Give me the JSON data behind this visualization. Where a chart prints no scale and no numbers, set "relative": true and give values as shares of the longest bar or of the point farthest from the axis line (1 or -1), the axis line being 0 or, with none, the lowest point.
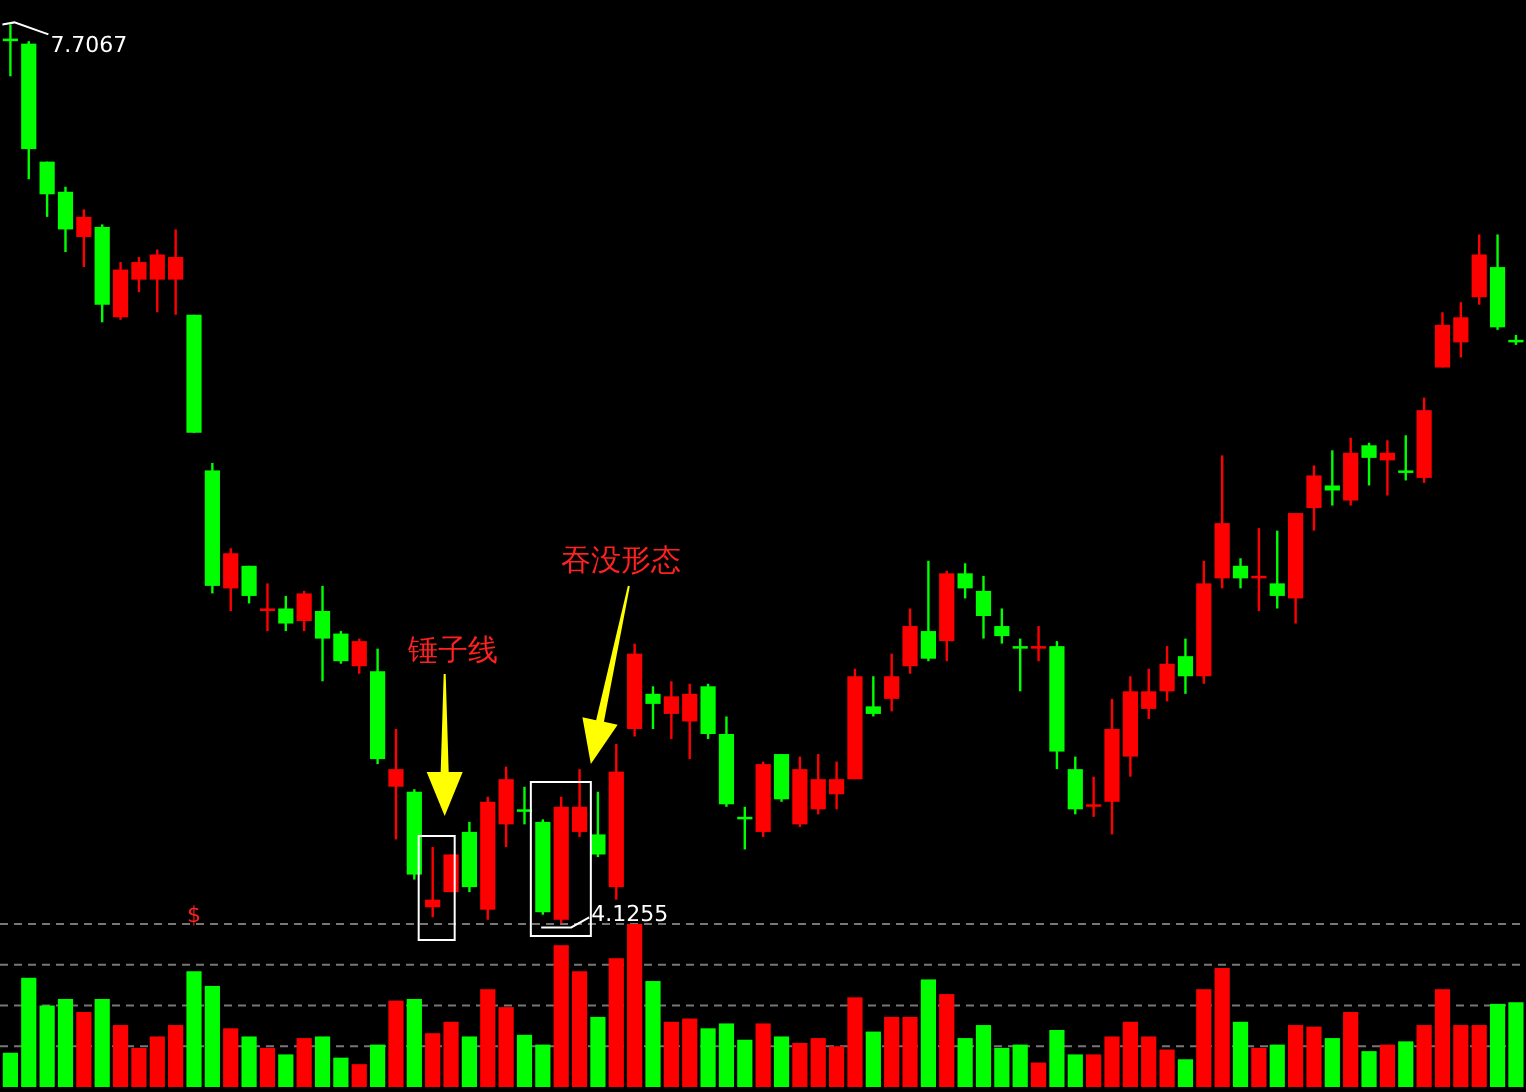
{
  "chart_data": [
    {
      "type": "candlestick",
      "categories": [
        null,
        null,
        null,
        null,
        null,
        null,
        null,
        null,
        null,
        null,
        null,
        null,
        null,
        null,
        null,
        null,
        null,
        null,
        null,
        null,
        null,
        null,
        null,
        null,
        null,
        null,
        null,
        null,
        null,
        null,
        null,
        null,
        null,
        null,
        null,
        null,
        null,
        null,
        null,
        null,
        null,
        null,
        null,
        null,
        null,
        null,
        null,
        null,
        null,
        null,
        null,
        null,
        null,
        null,
        null,
        null,
        null,
        null,
        null,
        null,
        null,
        null,
        null,
        null,
        null,
        null,
        null,
        null,
        null,
        null,
        null,
        null,
        null,
        null,
        null,
        null,
        null,
        null,
        null,
        null,
        null,
        null,
        null
      ],
      "ohlc": [
        [
          7.65,
          7.7067,
          7.5,
          7.64
        ],
        [
          7.63,
          7.64,
          7.09,
          7.21
        ],
        [
          7.16,
          7.16,
          6.94,
          7.03
        ],
        [
          7.04,
          7.06,
          6.8,
          6.89
        ],
        [
          6.86,
          6.97,
          6.74,
          6.94
        ],
        [
          6.9,
          6.91,
          6.52,
          6.59
        ],
        [
          6.54,
          6.76,
          6.53,
          6.73
        ],
        [
          6.69,
          6.78,
          6.64,
          6.76
        ],
        [
          6.69,
          6.81,
          6.56,
          6.79
        ],
        [
          6.69,
          6.89,
          6.55,
          6.78
        ],
        [
          6.55,
          6.55,
          6.08,
          6.08
        ],
        [
          5.93,
          5.96,
          5.44,
          5.47
        ],
        [
          5.46,
          5.62,
          5.37,
          5.6
        ],
        [
          5.55,
          5.55,
          5.4,
          5.43
        ],
        [
          5.37,
          5.48,
          5.29,
          5.38
        ],
        [
          5.38,
          5.43,
          5.29,
          5.32
        ],
        [
          5.33,
          5.45,
          5.29,
          5.44
        ],
        [
          5.37,
          5.47,
          5.09,
          5.26
        ],
        [
          5.28,
          5.29,
          5.16,
          5.17
        ],
        [
          5.15,
          5.26,
          5.12,
          5.25
        ],
        [
          5.13,
          5.22,
          4.76,
          4.78
        ],
        [
          4.67,
          4.9,
          4.46,
          4.74
        ],
        [
          4.65,
          4.66,
          4.3,
          4.32
        ],
        [
          4.19,
          4.43,
          4.15,
          4.22
        ],
        [
          4.25,
          4.4,
          4.25,
          4.4
        ],
        [
          4.49,
          4.53,
          4.25,
          4.27
        ],
        [
          4.18,
          4.63,
          4.14,
          4.61
        ],
        [
          4.52,
          4.75,
          4.43,
          4.7
        ],
        [
          4.58,
          4.67,
          4.52,
          4.57
        ],
        [
          4.53,
          4.54,
          4.16,
          4.17
        ],
        [
          4.14,
          4.63,
          4.1255,
          4.59
        ],
        [
          4.49,
          4.74,
          4.47,
          4.59
        ],
        [
          4.48,
          4.65,
          4.39,
          4.4
        ],
        [
          4.27,
          4.84,
          4.22,
          4.73
        ],
        [
          4.9,
          5.24,
          4.87,
          5.2
        ],
        [
          5.04,
          5.07,
          4.9,
          5.0
        ],
        [
          4.96,
          5.09,
          4.86,
          5.03
        ],
        [
          4.93,
          5.08,
          4.78,
          5.04
        ],
        [
          5.07,
          5.08,
          4.86,
          4.88
        ],
        [
          4.88,
          4.95,
          4.59,
          4.6
        ],
        [
          4.55,
          4.59,
          4.42,
          4.54
        ],
        [
          4.49,
          4.77,
          4.47,
          4.76
        ],
        [
          4.8,
          4.8,
          4.61,
          4.62
        ],
        [
          4.52,
          4.79,
          4.51,
          4.74
        ],
        [
          4.58,
          4.8,
          4.56,
          4.7
        ],
        [
          4.64,
          4.77,
          4.58,
          4.7
        ],
        [
          4.7,
          5.14,
          4.7,
          5.11
        ],
        [
          4.99,
          5.11,
          4.95,
          4.96
        ],
        [
          5.02,
          5.2,
          4.97,
          5.11
        ],
        [
          5.15,
          5.38,
          5.12,
          5.31
        ],
        [
          5.29,
          5.57,
          5.17,
          5.18
        ],
        [
          5.25,
          5.53,
          5.17,
          5.52
        ],
        [
          5.52,
          5.56,
          5.42,
          5.46
        ],
        [
          5.45,
          5.51,
          5.26,
          5.35
        ],
        [
          5.31,
          5.38,
          5.24,
          5.27
        ],
        [
          5.23,
          5.26,
          5.05,
          5.22
        ],
        [
          5.22,
          5.31,
          5.17,
          5.23
        ],
        [
          5.23,
          5.25,
          4.74,
          4.81
        ],
        [
          4.74,
          4.79,
          4.56,
          4.58
        ],
        [
          4.59,
          4.71,
          4.55,
          4.6
        ],
        [
          4.61,
          5.02,
          4.48,
          4.9
        ],
        [
          4.79,
          5.11,
          4.71,
          5.05
        ],
        [
          4.98,
          5.14,
          4.94,
          5.05
        ],
        [
          5.05,
          5.23,
          5.01,
          5.16
        ],
        [
          5.19,
          5.26,
          5.04,
          5.11
        ],
        [
          5.11,
          5.57,
          5.08,
          5.48
        ],
        [
          5.5,
          5.99,
          5.46,
          5.72
        ],
        [
          5.55,
          5.58,
          5.46,
          5.5
        ],
        [
          5.5,
          5.7,
          5.37,
          5.51
        ],
        [
          5.48,
          5.69,
          5.38,
          5.43
        ],
        [
          5.42,
          5.76,
          5.32,
          5.76
        ],
        [
          5.78,
          5.95,
          5.69,
          5.91
        ],
        [
          5.87,
          6.01,
          5.79,
          5.85
        ],
        [
          5.81,
          6.06,
          5.79,
          6.0
        ],
        [
          6.03,
          6.04,
          5.87,
          5.98
        ],
        [
          5.97,
          6.05,
          5.83,
          6.0
        ],
        [
          5.93,
          6.07,
          5.89,
          5.92
        ],
        [
          5.9,
          6.22,
          5.88,
          6.17
        ],
        [
          6.34,
          6.56,
          6.34,
          6.51
        ],
        [
          6.44,
          6.6,
          6.38,
          6.54
        ],
        [
          6.62,
          6.87,
          6.59,
          6.79
        ],
        [
          6.74,
          6.87,
          6.49,
          6.5
        ],
        [
          6.45,
          6.47,
          6.43,
          6.44
        ]
      ],
      "colors": [
        "#00ff00",
        "#00ff00",
        "#00ff00",
        "#00ff00",
        "#ff0000",
        "#00ff00",
        "#ff0000",
        "#ff0000",
        "#ff0000",
        "#ff0000",
        "#00ff00",
        "#00ff00",
        "#ff0000",
        "#00ff00",
        "#ff0000",
        "#00ff00",
        "#ff0000",
        "#00ff00",
        "#00ff00",
        "#ff0000",
        "#00ff00",
        "#ff0000",
        "#00ff00",
        "#ff0000",
        "#ff0000",
        "#00ff00",
        "#ff0000",
        "#ff0000",
        "#00ff00",
        "#00ff00",
        "#ff0000",
        "#ff0000",
        "#00ff00",
        "#ff0000",
        "#ff0000",
        "#00ff00",
        "#ff0000",
        "#ff0000",
        "#00ff00",
        "#00ff00",
        "#00ff00",
        "#ff0000",
        "#00ff00",
        "#ff0000",
        "#ff0000",
        "#ff0000",
        "#ff0000",
        "#00ff00",
        "#ff0000",
        "#ff0000",
        "#00ff00",
        "#ff0000",
        "#00ff00",
        "#00ff00",
        "#00ff00",
        "#00ff00",
        "#ff0000",
        "#00ff00",
        "#00ff00",
        "#ff0000",
        "#ff0000",
        "#ff0000",
        "#ff0000",
        "#ff0000",
        "#00ff00",
        "#ff0000",
        "#ff0000",
        "#00ff00",
        "#ff0000",
        "#00ff00",
        "#ff0000",
        "#ff0000",
        "#00ff00",
        "#ff0000",
        "#00ff00",
        "#ff0000",
        "#00ff00",
        "#ff0000",
        "#ff0000",
        "#ff0000",
        "#ff0000",
        "#00ff00",
        "#00ff00"
      ],
      "annotations": [
        "7.7067",
        "4.1255",
        "锤子线",
        "吞没形态",
        "$"
      ]
    },
    {
      "type": "bar",
      "relative": true,
      "grid": true,
      "categories": [
        null,
        null,
        null,
        null,
        null,
        null,
        null,
        null,
        null,
        null,
        null,
        null,
        null,
        null,
        null,
        null,
        null,
        null,
        null,
        null,
        null,
        null,
        null,
        null,
        null,
        null,
        null,
        null,
        null,
        null,
        null,
        null,
        null,
        null,
        null,
        null,
        null,
        null,
        null,
        null,
        null,
        null,
        null,
        null,
        null,
        null,
        null,
        null,
        null,
        null,
        null,
        null,
        null,
        null,
        null,
        null,
        null,
        null,
        null,
        null,
        null,
        null,
        null,
        null,
        null,
        null,
        null,
        null,
        null,
        null,
        null,
        null,
        null,
        null,
        null,
        null,
        null,
        null,
        null,
        null,
        null,
        null,
        null
      ],
      "values": [
        0.21,
        0.67,
        0.5,
        0.54,
        0.46,
        0.54,
        0.38,
        0.24,
        0.31,
        0.38,
        0.71,
        0.62,
        0.36,
        0.31,
        0.24,
        0.2,
        0.3,
        0.31,
        0.18,
        0.14,
        0.26,
        0.53,
        0.54,
        0.33,
        0.4,
        0.31,
        0.6,
        0.49,
        0.32,
        0.26,
        0.87,
        0.71,
        0.43,
        0.79,
        1,
        0.65,
        0.4,
        0.42,
        0.36,
        0.39,
        0.29,
        0.39,
        0.31,
        0.27,
        0.3,
        0.25,
        0.55,
        0.34,
        0.43,
        0.43,
        0.66,
        0.57,
        0.3,
        0.38,
        0.24,
        0.26,
        0.15,
        0.35,
        0.2,
        0.2,
        0.31,
        0.4,
        0.31,
        0.23,
        0.17,
        0.6,
        0.73,
        0.4,
        0.24,
        0.26,
        0.38,
        0.37,
        0.3,
        0.46,
        0.22,
        0.26,
        0.28,
        0.38,
        0.6,
        0.38,
        0.38,
        0.51,
        0.52
      ],
      "colors": [
        "#00ff00",
        "#00ff00",
        "#00ff00",
        "#00ff00",
        "#ff0000",
        "#00ff00",
        "#ff0000",
        "#ff0000",
        "#ff0000",
        "#ff0000",
        "#00ff00",
        "#00ff00",
        "#ff0000",
        "#00ff00",
        "#ff0000",
        "#00ff00",
        "#ff0000",
        "#00ff00",
        "#00ff00",
        "#ff0000",
        "#00ff00",
        "#ff0000",
        "#00ff00",
        "#ff0000",
        "#ff0000",
        "#00ff00",
        "#ff0000",
        "#ff0000",
        "#00ff00",
        "#00ff00",
        "#ff0000",
        "#ff0000",
        "#00ff00",
        "#ff0000",
        "#ff0000",
        "#00ff00",
        "#ff0000",
        "#ff0000",
        "#00ff00",
        "#00ff00",
        "#00ff00",
        "#ff0000",
        "#00ff00",
        "#ff0000",
        "#ff0000",
        "#ff0000",
        "#ff0000",
        "#00ff00",
        "#ff0000",
        "#ff0000",
        "#00ff00",
        "#ff0000",
        "#00ff00",
        "#00ff00",
        "#00ff00",
        "#00ff00",
        "#ff0000",
        "#00ff00",
        "#00ff00",
        "#ff0000",
        "#ff0000",
        "#ff0000",
        "#ff0000",
        "#ff0000",
        "#00ff00",
        "#ff0000",
        "#ff0000",
        "#00ff00",
        "#ff0000",
        "#00ff00",
        "#ff0000",
        "#ff0000",
        "#00ff00",
        "#ff0000",
        "#00ff00",
        "#ff0000",
        "#00ff00",
        "#ff0000",
        "#ff0000",
        "#ff0000",
        "#ff0000",
        "#00ff00",
        "#00ff00"
      ]
    }
  ]
}
